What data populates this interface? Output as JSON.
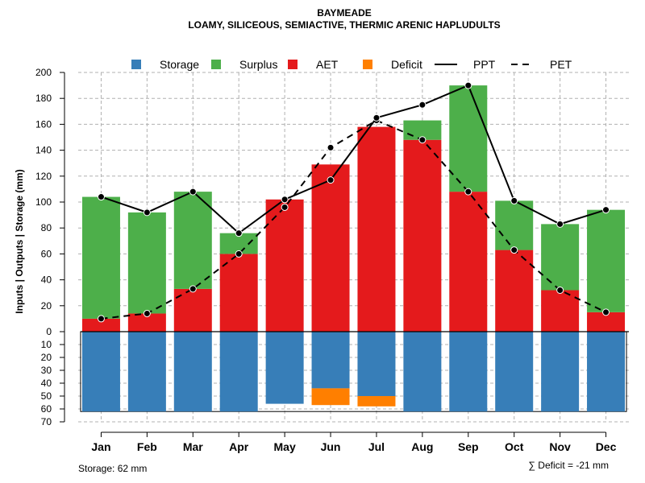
{
  "chart_data": {
    "type": "bar",
    "title": "BAYMEADE",
    "subtitle": "LOAMY, SILICEOUS, SEMIACTIVE, THERMIC ARENIC HAPLUDULTS",
    "ylabel": "Inputs | Outputs | Storage    (mm)",
    "ylim_upper": [
      0,
      200
    ],
    "ylim_lower": [
      0,
      70
    ],
    "upper_ticks": [
      "0",
      "20",
      "40",
      "60",
      "80",
      "100",
      "120",
      "140",
      "160",
      "180",
      "200"
    ],
    "lower_ticks": [
      "10",
      "20",
      "30",
      "40",
      "50",
      "60",
      "70"
    ],
    "categories": [
      "Jan",
      "Feb",
      "Mar",
      "Apr",
      "May",
      "Jun",
      "Jul",
      "Aug",
      "Sep",
      "Oct",
      "Nov",
      "Dec"
    ],
    "series": [
      {
        "name": "Storage",
        "color": "#377EB8",
        "values": [
          62,
          62,
          62,
          62,
          56,
          44,
          50,
          62,
          62,
          62,
          62,
          62
        ]
      },
      {
        "name": "Surplus",
        "color": "#4DAF4A",
        "values": [
          94,
          78,
          75,
          16,
          0,
          0,
          0,
          15,
          82,
          38,
          51,
          79
        ]
      },
      {
        "name": "AET",
        "color": "#E41A1C",
        "values": [
          10,
          14,
          33,
          60,
          102,
          129,
          158,
          148,
          108,
          63,
          32,
          15
        ]
      },
      {
        "name": "Deficit",
        "color": "#FF7F00",
        "values": [
          0,
          0,
          0,
          0,
          0,
          13,
          8,
          0,
          0,
          0,
          0,
          0
        ]
      },
      {
        "name": "PPT",
        "values": [
          104,
          92,
          108,
          76,
          102,
          117,
          165,
          175,
          190,
          101,
          83,
          94
        ]
      },
      {
        "name": "PET",
        "values": [
          10,
          14,
          33,
          60,
          96,
          142,
          163,
          148,
          108,
          63,
          32,
          15
        ]
      }
    ],
    "legend": [
      "Storage",
      "Surplus",
      "AET",
      "Deficit",
      "PPT",
      "PET"
    ],
    "legend_position": "top",
    "grid": true,
    "storage_note": "Storage: 62 mm",
    "deficit_note": "∑ Deficit = -21 mm"
  }
}
